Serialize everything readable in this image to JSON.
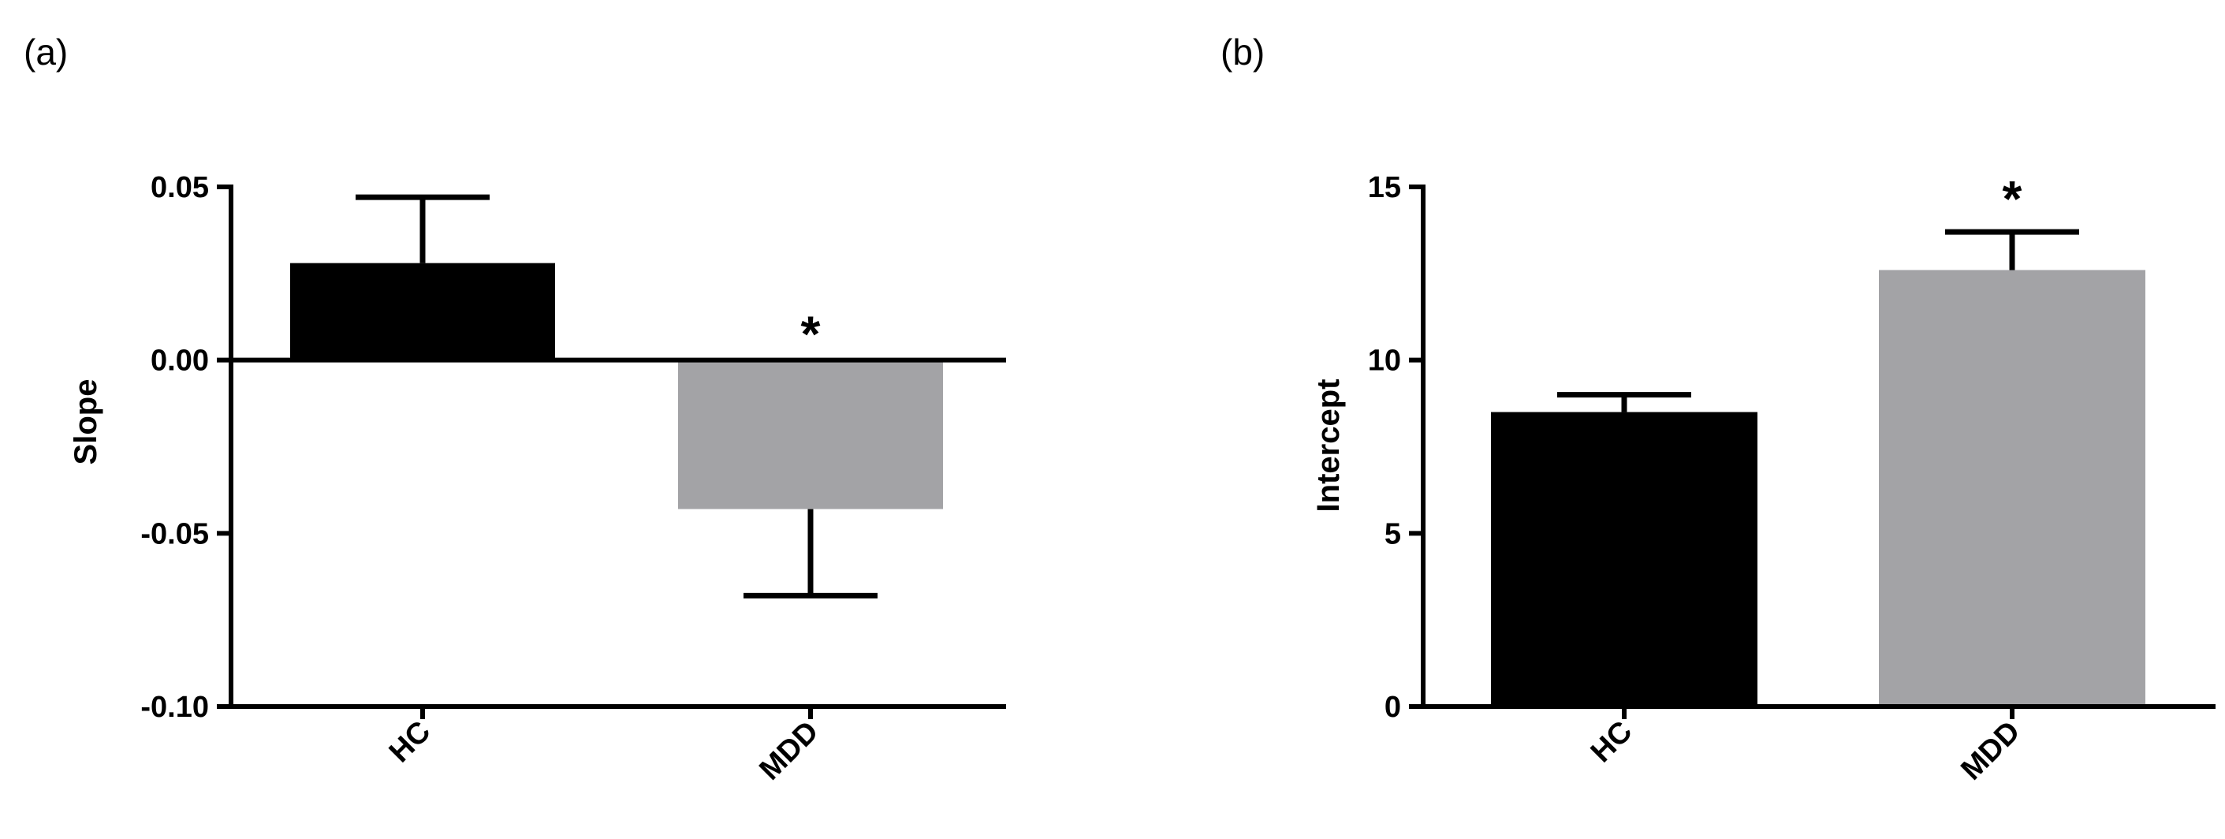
{
  "colors": {
    "HC": "#000000",
    "MDD": "#a3a3a6",
    "axis": "#000000"
  },
  "chart_data": [
    {
      "panel": "(a)",
      "type": "bar",
      "categories": [
        "HC",
        "MDD"
      ],
      "values": [
        0.028,
        -0.043
      ],
      "errors": [
        0.019,
        0.025
      ],
      "error_direction": [
        "up",
        "down"
      ],
      "ylabel": "Slope",
      "ylim": [
        -0.1,
        0.05
      ],
      "yticks": [
        0.05,
        0.0,
        -0.05,
        -0.1
      ],
      "ytick_labels": [
        "0.05",
        "0.00",
        "-0.05",
        "-0.10"
      ],
      "annotations": [
        {
          "category": "MDD",
          "text": "*"
        }
      ]
    },
    {
      "panel": "(b)",
      "type": "bar",
      "categories": [
        "HC",
        "MDD"
      ],
      "values": [
        8.5,
        12.6
      ],
      "errors": [
        0.5,
        1.1
      ],
      "error_direction": [
        "up",
        "up"
      ],
      "ylabel": "Intercept",
      "ylim": [
        0,
        15
      ],
      "yticks": [
        0,
        5,
        10,
        15
      ],
      "ytick_labels": [
        "0",
        "5",
        "10",
        "15"
      ],
      "annotations": [
        {
          "category": "MDD",
          "text": "*"
        }
      ]
    }
  ]
}
